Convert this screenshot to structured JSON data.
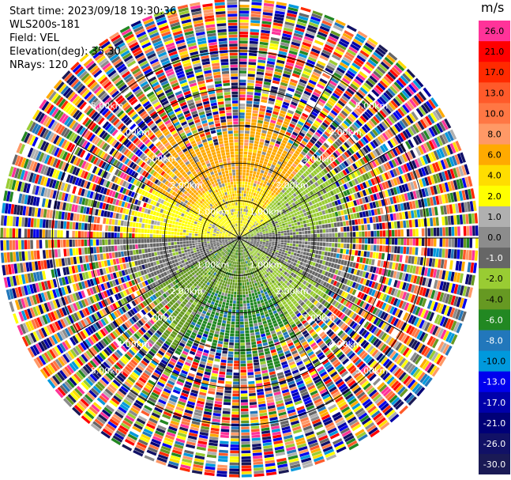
{
  "info": {
    "start_time": "Start time: 2023/09/18 19:30:36",
    "instrument": "WLS200s-181",
    "field": "Field: VEL",
    "elevation": "Elevation(deg): 35.30",
    "nrays": "NRays: 120"
  },
  "colorbar": {
    "unit": "m/s",
    "levels": [
      {
        "label": "26.0",
        "color": "#ff3399"
      },
      {
        "label": "21.0",
        "color": "#ff0000"
      },
      {
        "label": "17.0",
        "color": "#ff2a00"
      },
      {
        "label": "13.0",
        "color": "#ff5a2a"
      },
      {
        "label": "10.0",
        "color": "#ff7744"
      },
      {
        "label": "8.0",
        "color": "#ff9966"
      },
      {
        "label": "6.0",
        "color": "#ffaa00"
      },
      {
        "label": "4.0",
        "color": "#ffdd00"
      },
      {
        "label": "2.0",
        "color": "#ffff00"
      },
      {
        "label": "1.0",
        "color": "#b0b0b0"
      },
      {
        "label": "0.0",
        "color": "#8c8c8c"
      },
      {
        "label": "-1.0",
        "color": "#666666"
      },
      {
        "label": "-2.0",
        "color": "#99cc33"
      },
      {
        "label": "-4.0",
        "color": "#669922"
      },
      {
        "label": "-6.0",
        "color": "#228822"
      },
      {
        "label": "-8.0",
        "color": "#2277bb"
      },
      {
        "label": "-10.0",
        "color": "#0099dd"
      },
      {
        "label": "-13.0",
        "color": "#0000ee"
      },
      {
        "label": "-17.0",
        "color": "#0000aa"
      },
      {
        "label": "-21.0",
        "color": "#000077"
      },
      {
        "label": "-26.0",
        "color": "#111166"
      },
      {
        "label": "-30.0",
        "color": "#1a1a55"
      }
    ]
  },
  "chart_data": {
    "type": "ppi",
    "field": "VEL",
    "nrays": 120,
    "max_range_km": 6.4,
    "range_rings": [
      {
        "range_km": 1.0,
        "label": "1.00km"
      },
      {
        "range_km": 2.0,
        "label": "2.00km"
      },
      {
        "range_km": 3.0,
        "label": "3.00km"
      },
      {
        "range_km": 4.0,
        "label": "4.00km"
      },
      {
        "range_km": 5.0,
        "label": "5.00km"
      }
    ],
    "spokes_deg": [
      0,
      30,
      60,
      90,
      120,
      150,
      180,
      210,
      240,
      270,
      300,
      330
    ]
  }
}
